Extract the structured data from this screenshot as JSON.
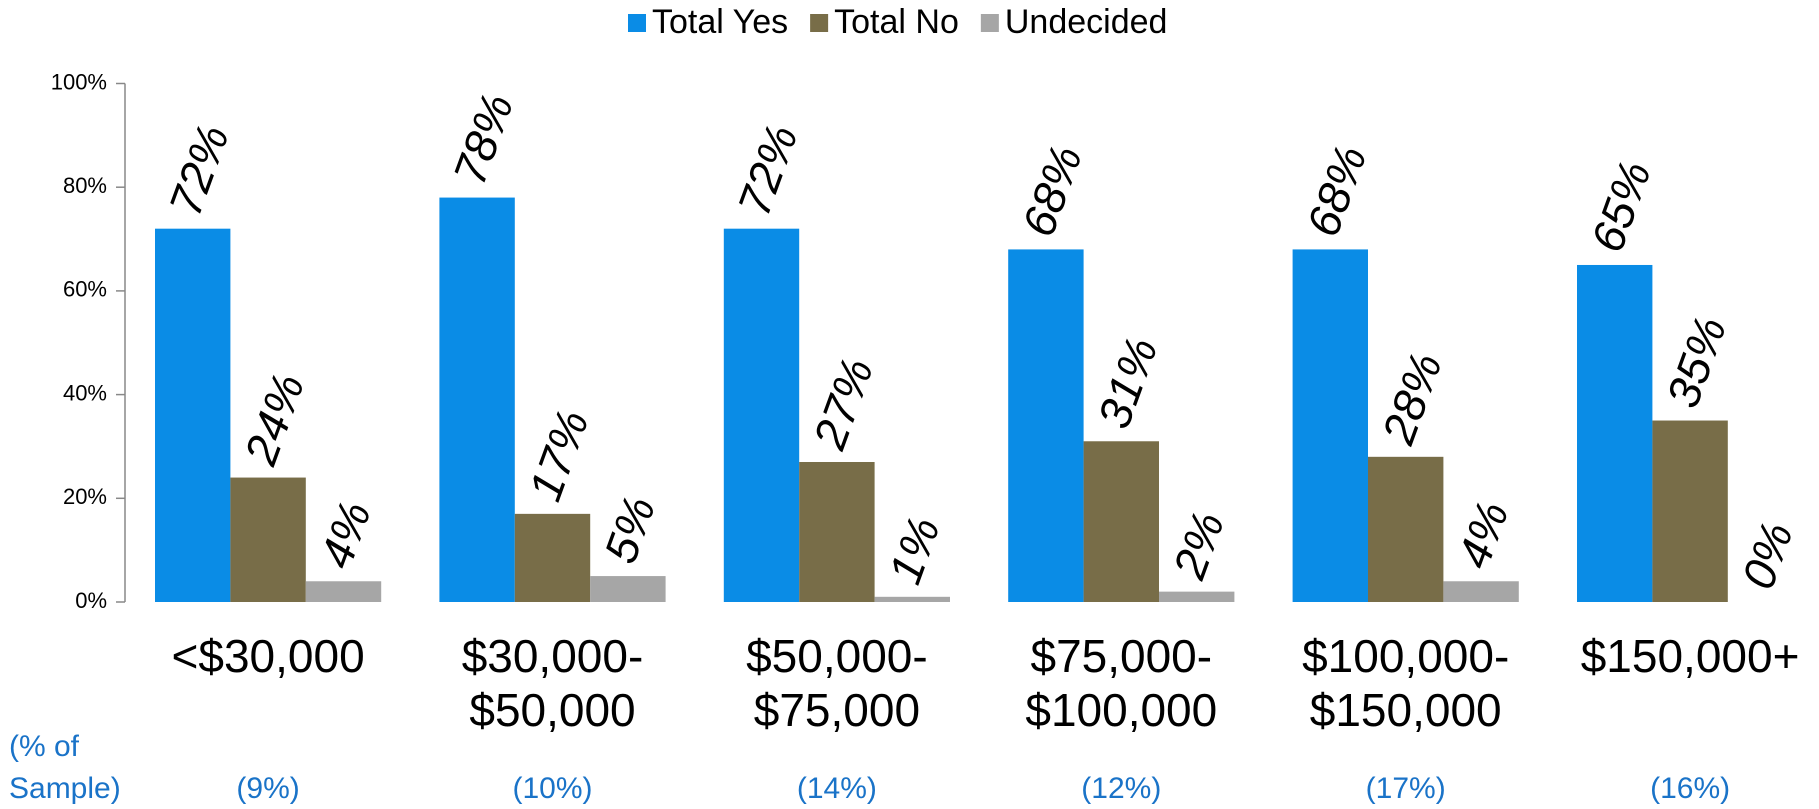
{
  "chart_data": {
    "type": "bar",
    "categories": [
      [
        "<$30,000"
      ],
      [
        "$30,000-",
        "$50,000"
      ],
      [
        "$50,000-",
        "$75,000"
      ],
      [
        "$75,000-",
        "$100,000"
      ],
      [
        "$100,000-",
        "$150,000"
      ],
      [
        "$150,000+"
      ]
    ],
    "series": [
      {
        "name": "Total Yes",
        "color": "#0a8ce6",
        "values": [
          72,
          78,
          72,
          68,
          68,
          65
        ],
        "value_labels": [
          "72%",
          "78%",
          "72%",
          "68%",
          "68%",
          "65%"
        ]
      },
      {
        "name": "Total No",
        "color": "#786d48",
        "values": [
          24,
          17,
          27,
          31,
          28,
          35
        ],
        "value_labels": [
          "24%",
          "17%",
          "27%",
          "31%",
          "28%",
          "35%"
        ]
      },
      {
        "name": "Undecided",
        "color": "#a6a6a6",
        "values": [
          4,
          5,
          1,
          2,
          4,
          0
        ],
        "value_labels": [
          "4%",
          "5%",
          "1%",
          "2%",
          "4%",
          "0%"
        ]
      }
    ],
    "ylim": [
      0,
      100
    ],
    "yticks": [
      {
        "value": 0,
        "label": "0%"
      },
      {
        "value": 20,
        "label": "20%"
      },
      {
        "value": 40,
        "label": "40%"
      },
      {
        "value": 60,
        "label": "60%"
      },
      {
        "value": 80,
        "label": "80%"
      },
      {
        "value": 100,
        "label": "100%"
      }
    ],
    "legend": "top",
    "sample_label": [
      "(% of",
      "Sample)"
    ],
    "sample_shares": [
      "(9%)",
      "(10%)",
      "(14%)",
      "(12%)",
      "(17%)",
      "(16%)"
    ]
  }
}
